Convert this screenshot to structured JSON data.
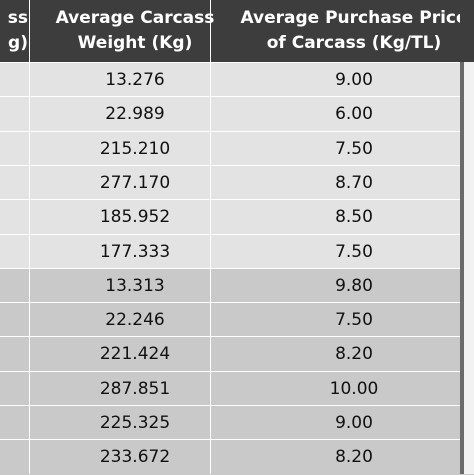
{
  "header": {
    "col0": [
      "ss",
      "g)"
    ],
    "col1": [
      "Average Carcass",
      "Weight  (Kg)"
    ],
    "col2": [
      "Average Purchase Price",
      "of Carcass  (Kg/TL)"
    ]
  },
  "rows": [
    {
      "weight": "13.276",
      "price": "9.00",
      "shade": "light"
    },
    {
      "weight": "22.989",
      "price": "6.00",
      "shade": "light"
    },
    {
      "weight": "215.210",
      "price": "7.50",
      "shade": "light"
    },
    {
      "weight": "277.170",
      "price": "8.70",
      "shade": "light"
    },
    {
      "weight": "185.952",
      "price": "8.50",
      "shade": "light"
    },
    {
      "weight": "177.333",
      "price": "7.50",
      "shade": "light"
    },
    {
      "weight": "13.313",
      "price": "9.80",
      "shade": "dark"
    },
    {
      "weight": "22.246",
      "price": "7.50",
      "shade": "dark"
    },
    {
      "weight": "221.424",
      "price": "8.20",
      "shade": "dark"
    },
    {
      "weight": "287.851",
      "price": "10.00",
      "shade": "dark"
    },
    {
      "weight": "225.325",
      "price": "9.00",
      "shade": "dark"
    },
    {
      "weight": "233.672",
      "price": "8.20",
      "shade": "dark"
    }
  ],
  "colors": {
    "header_bg": "#3d3d3d",
    "row_light": "#e3e3e3",
    "row_dark": "#c9c9c9",
    "header_text": "#ffffff"
  }
}
